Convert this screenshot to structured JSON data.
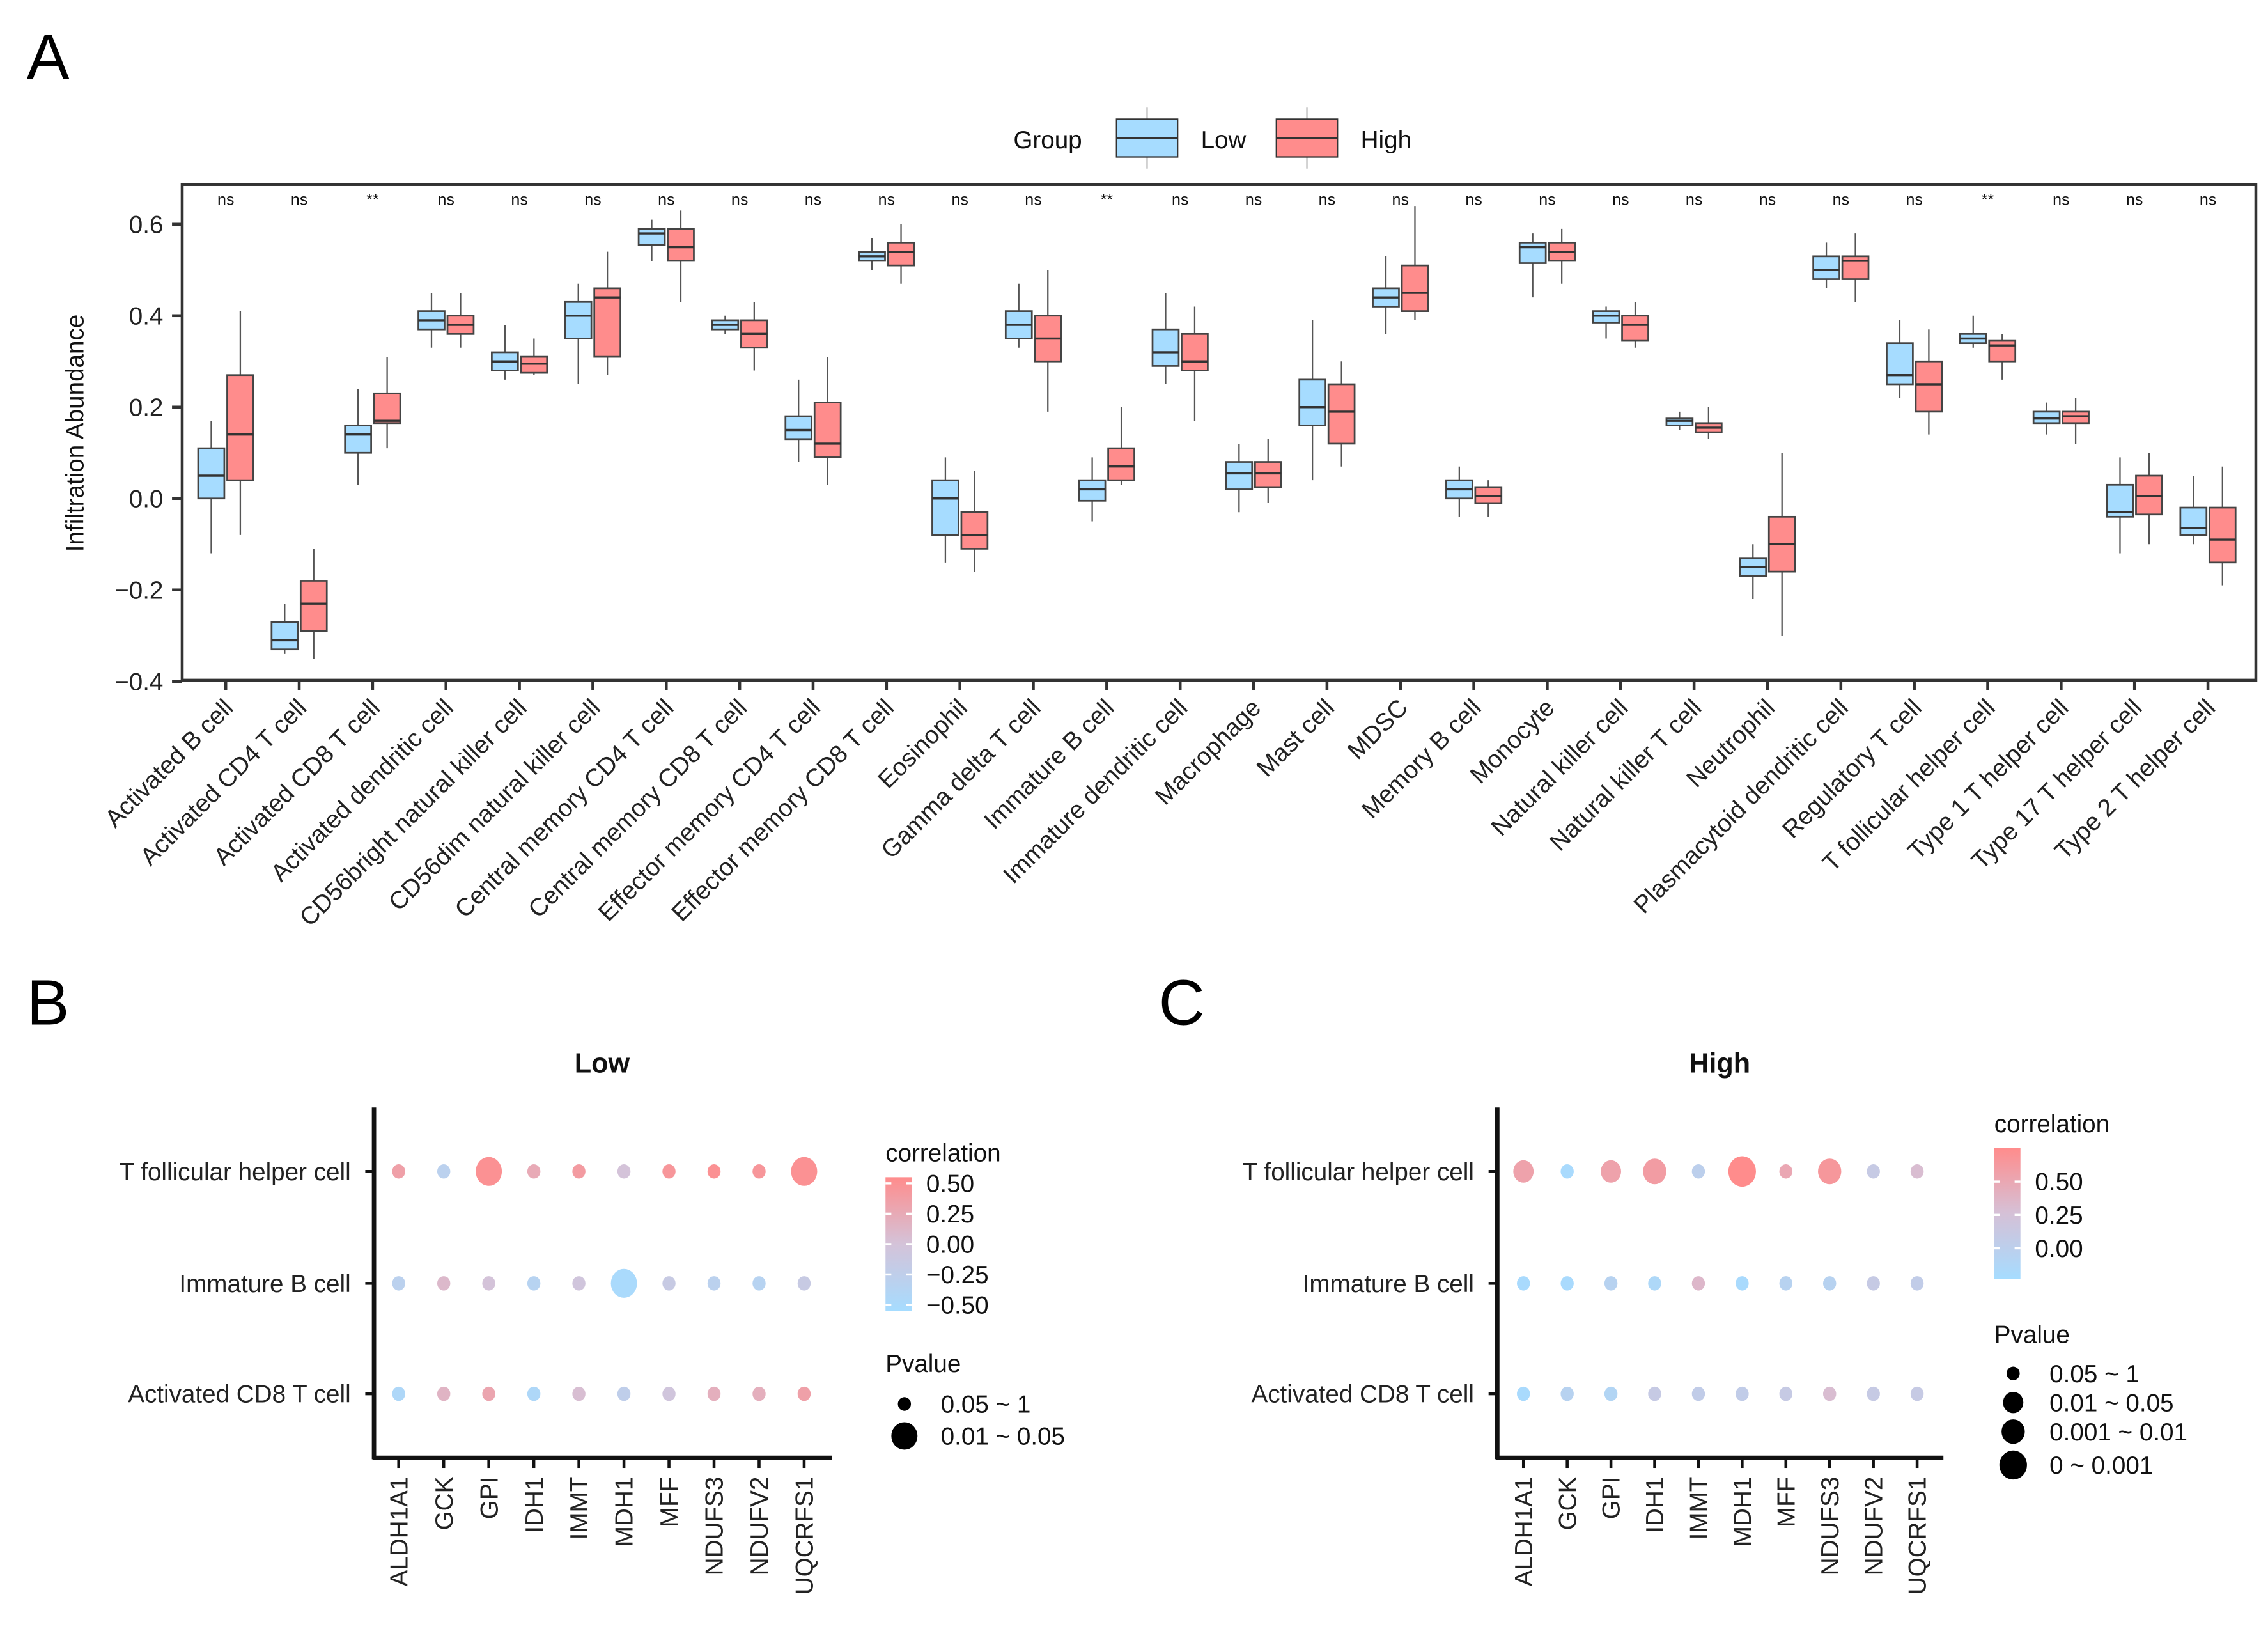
{
  "panels": {
    "a": "A",
    "b": "B",
    "c": "C"
  },
  "chart_data": [
    {
      "type": "box",
      "ylabel": "Infiltration Abundance",
      "ylim": [
        -0.4,
        0.69
      ],
      "yticks": [
        "0.6",
        "0.4",
        "0.2",
        "0.0",
        "−0.2",
        "−0.4"
      ],
      "ytick_values": [
        0.6,
        0.4,
        0.2,
        0.0,
        -0.2,
        -0.4
      ],
      "legend": {
        "title": "Group",
        "placement": "top",
        "entries": [
          "Low",
          "High"
        ]
      },
      "colors": {
        "Low": "#a6dcff",
        "High": "#ff8c8c"
      },
      "categories": [
        "Activated B cell",
        "Activated CD4 T cell",
        "Activated CD8 T cell",
        "Activated dendritic cell",
        "CD56bright natural killer cell",
        "CD56dim natural killer cell",
        "Central memory CD4 T cell",
        "Central memory CD8 T cell",
        "Effector memory CD4 T cell",
        "Effector memory CD8 T cell",
        "Eosinophil",
        "Gamma delta T cell",
        "Immature  B cell",
        "Immature dendritic cell",
        "Macrophage",
        "Mast cell",
        "MDSC",
        "Memory B cell",
        "Monocyte",
        "Natural killer cell",
        "Natural killer T cell",
        "Neutrophil",
        "Plasmacytoid dendritic cell",
        "Regulatory T cell",
        "T follicular helper cell",
        "Type 1 T helper cell",
        "Type 17 T helper cell",
        "Type 2 T helper cell"
      ],
      "significance": [
        "ns",
        "ns",
        "**",
        "ns",
        "ns",
        "ns",
        "ns",
        "ns",
        "ns",
        "ns",
        "ns",
        "ns",
        "**",
        "ns",
        "ns",
        "ns",
        "ns",
        "ns",
        "ns",
        "ns",
        "ns",
        "ns",
        "ns",
        "ns",
        "**",
        "ns",
        "ns",
        "ns"
      ],
      "series": [
        {
          "name": "Low",
          "boxes": [
            [
              -0.12,
              0.0,
              0.05,
              0.11,
              0.17
            ],
            [
              -0.34,
              -0.33,
              -0.31,
              -0.27,
              -0.23
            ],
            [
              0.03,
              0.1,
              0.14,
              0.16,
              0.24
            ],
            [
              0.33,
              0.37,
              0.39,
              0.41,
              0.45
            ],
            [
              0.26,
              0.28,
              0.3,
              0.32,
              0.38
            ],
            [
              0.25,
              0.35,
              0.4,
              0.43,
              0.47
            ],
            [
              0.52,
              0.555,
              0.58,
              0.59,
              0.61
            ],
            [
              0.36,
              0.37,
              0.38,
              0.39,
              0.4
            ],
            [
              0.08,
              0.13,
              0.15,
              0.18,
              0.26
            ],
            [
              0.5,
              0.52,
              0.53,
              0.54,
              0.57
            ],
            [
              -0.14,
              -0.08,
              0.0,
              0.04,
              0.09
            ],
            [
              0.33,
              0.35,
              0.38,
              0.41,
              0.47
            ],
            [
              -0.05,
              -0.005,
              0.02,
              0.04,
              0.09
            ],
            [
              0.25,
              0.29,
              0.32,
              0.37,
              0.45
            ],
            [
              -0.03,
              0.02,
              0.055,
              0.08,
              0.12
            ],
            [
              0.04,
              0.16,
              0.2,
              0.26,
              0.39
            ],
            [
              0.36,
              0.42,
              0.44,
              0.46,
              0.53
            ],
            [
              -0.04,
              0.0,
              0.02,
              0.04,
              0.07
            ],
            [
              0.44,
              0.515,
              0.55,
              0.56,
              0.58
            ],
            [
              0.35,
              0.385,
              0.4,
              0.41,
              0.42
            ],
            [
              0.15,
              0.16,
              0.17,
              0.175,
              0.19
            ],
            [
              -0.22,
              -0.17,
              -0.15,
              -0.13,
              -0.1
            ],
            [
              0.46,
              0.48,
              0.5,
              0.53,
              0.56
            ],
            [
              0.22,
              0.25,
              0.27,
              0.34,
              0.39
            ],
            [
              0.33,
              0.34,
              0.35,
              0.36,
              0.4
            ],
            [
              0.14,
              0.165,
              0.175,
              0.19,
              0.21
            ],
            [
              -0.12,
              -0.04,
              -0.03,
              0.03,
              0.09
            ],
            [
              -0.1,
              -0.08,
              -0.065,
              -0.02,
              0.05
            ]
          ]
        },
        {
          "name": "High",
          "boxes": [
            [
              -0.08,
              0.04,
              0.14,
              0.27,
              0.41
            ],
            [
              -0.35,
              -0.29,
              -0.23,
              -0.18,
              -0.11
            ],
            [
              0.11,
              0.165,
              0.17,
              0.23,
              0.31
            ],
            [
              0.33,
              0.36,
              0.38,
              0.4,
              0.45
            ],
            [
              0.27,
              0.275,
              0.295,
              0.31,
              0.35
            ],
            [
              0.27,
              0.31,
              0.44,
              0.46,
              0.54
            ],
            [
              0.43,
              0.52,
              0.55,
              0.59,
              0.63
            ],
            [
              0.28,
              0.33,
              0.36,
              0.39,
              0.43
            ],
            [
              0.03,
              0.09,
              0.12,
              0.21,
              0.31
            ],
            [
              0.47,
              0.51,
              0.54,
              0.56,
              0.6
            ],
            [
              -0.16,
              -0.11,
              -0.08,
              -0.03,
              0.06
            ],
            [
              0.19,
              0.3,
              0.35,
              0.4,
              0.5
            ],
            [
              0.03,
              0.04,
              0.07,
              0.11,
              0.2
            ],
            [
              0.17,
              0.28,
              0.3,
              0.36,
              0.42
            ],
            [
              -0.01,
              0.025,
              0.055,
              0.08,
              0.13
            ],
            [
              0.07,
              0.12,
              0.19,
              0.25,
              0.3
            ],
            [
              0.39,
              0.41,
              0.45,
              0.51,
              0.64
            ],
            [
              -0.04,
              -0.01,
              0.005,
              0.025,
              0.04
            ],
            [
              0.47,
              0.52,
              0.54,
              0.56,
              0.59
            ],
            [
              0.33,
              0.345,
              0.38,
              0.4,
              0.43
            ],
            [
              0.13,
              0.145,
              0.155,
              0.165,
              0.2
            ],
            [
              -0.3,
              -0.16,
              -0.1,
              -0.04,
              0.1
            ],
            [
              0.43,
              0.48,
              0.52,
              0.53,
              0.58
            ],
            [
              0.14,
              0.19,
              0.25,
              0.3,
              0.37
            ],
            [
              0.26,
              0.3,
              0.335,
              0.345,
              0.36
            ],
            [
              0.12,
              0.165,
              0.18,
              0.19,
              0.22
            ],
            [
              -0.1,
              -0.035,
              0.005,
              0.05,
              0.1
            ],
            [
              -0.19,
              -0.14,
              -0.09,
              -0.02,
              0.07
            ]
          ]
        }
      ]
    },
    {
      "type": "scatter",
      "title": "Low",
      "rows": [
        "T follicular helper cell",
        "Immature  B cell",
        "Activated CD8 T cell"
      ],
      "columns": [
        "ALDH1A1",
        "GCK",
        "GPI",
        "IDH1",
        "IMMT",
        "MDH1",
        "MFF",
        "NDUFS3",
        "NDUFV2",
        "UQCRFS1"
      ],
      "correlation": [
        [
          0.35,
          -0.3,
          0.5,
          0.25,
          0.4,
          0.0,
          0.45,
          0.5,
          0.45,
          0.5
        ],
        [
          -0.3,
          0.1,
          0.0,
          -0.35,
          -0.05,
          -0.5,
          -0.15,
          -0.3,
          -0.35,
          -0.15
        ],
        [
          -0.45,
          0.15,
          0.3,
          -0.45,
          0.05,
          -0.25,
          -0.05,
          0.2,
          0.2,
          0.35
        ]
      ],
      "pvalue_class": [
        [
          0,
          0,
          1,
          0,
          0,
          0,
          0,
          0,
          0,
          1
        ],
        [
          0,
          0,
          0,
          0,
          0,
          1,
          0,
          0,
          0,
          0
        ],
        [
          0,
          0,
          0,
          0,
          0,
          0,
          0,
          0,
          0,
          0
        ]
      ],
      "color_legend": {
        "title": "correlation",
        "ticks": [
          "0.50",
          "0.25",
          "0.00",
          "−0.25",
          "−0.50"
        ],
        "tick_values": [
          0.5,
          0.25,
          0,
          -0.25,
          -0.5
        ],
        "range": [
          -0.55,
          0.55
        ],
        "low": "#a6dcff",
        "mid": "#d4c3d9",
        "high": "#ff8c8c",
        "mid_value": 0.0
      },
      "size_legend": {
        "title": "Pvalue",
        "entries": [
          "0.05 ~ 1",
          "0.01 ~ 0.05"
        ]
      }
    },
    {
      "type": "scatter",
      "title": "High",
      "rows": [
        "T follicular helper cell",
        "Immature  B cell",
        "Activated CD8 T cell"
      ],
      "columns": [
        "ALDH1A1",
        "GCK",
        "GPI",
        "IDH1",
        "IMMT",
        "MDH1",
        "MFF",
        "NDUFS3",
        "NDUFV2",
        "UQCRFS1"
      ],
      "correlation": [
        [
          0.55,
          -0.2,
          0.55,
          0.6,
          0.0,
          0.75,
          0.5,
          0.65,
          0.1,
          0.3
        ],
        [
          -0.2,
          -0.2,
          -0.05,
          -0.15,
          0.35,
          -0.2,
          -0.05,
          -0.05,
          0.1,
          0.05
        ],
        [
          -0.2,
          -0.05,
          -0.1,
          0.1,
          0.05,
          0.05,
          0.1,
          0.3,
          0.1,
          0.1
        ]
      ],
      "pvalue_class": [
        [
          1,
          0,
          1,
          2,
          0,
          3,
          0,
          2,
          0,
          0
        ],
        [
          0,
          0,
          0,
          0,
          0,
          0,
          0,
          0,
          0,
          0
        ],
        [
          0,
          0,
          0,
          0,
          0,
          0,
          0,
          0,
          0,
          0
        ]
      ],
      "color_legend": {
        "title": "correlation",
        "ticks": [
          "0.50",
          "0.25",
          "0.00"
        ],
        "tick_values": [
          0.5,
          0.25,
          0
        ],
        "range": [
          -0.23,
          0.75
        ],
        "low": "#a6dcff",
        "mid": "#d6c0d6",
        "high": "#ff8c8c",
        "mid_value": 0.27
      },
      "size_legend": {
        "title": "Pvalue",
        "entries": [
          "0.05 ~ 1",
          "0.01 ~ 0.05",
          "0.001 ~ 0.01",
          "0 ~ 0.001"
        ]
      }
    }
  ]
}
